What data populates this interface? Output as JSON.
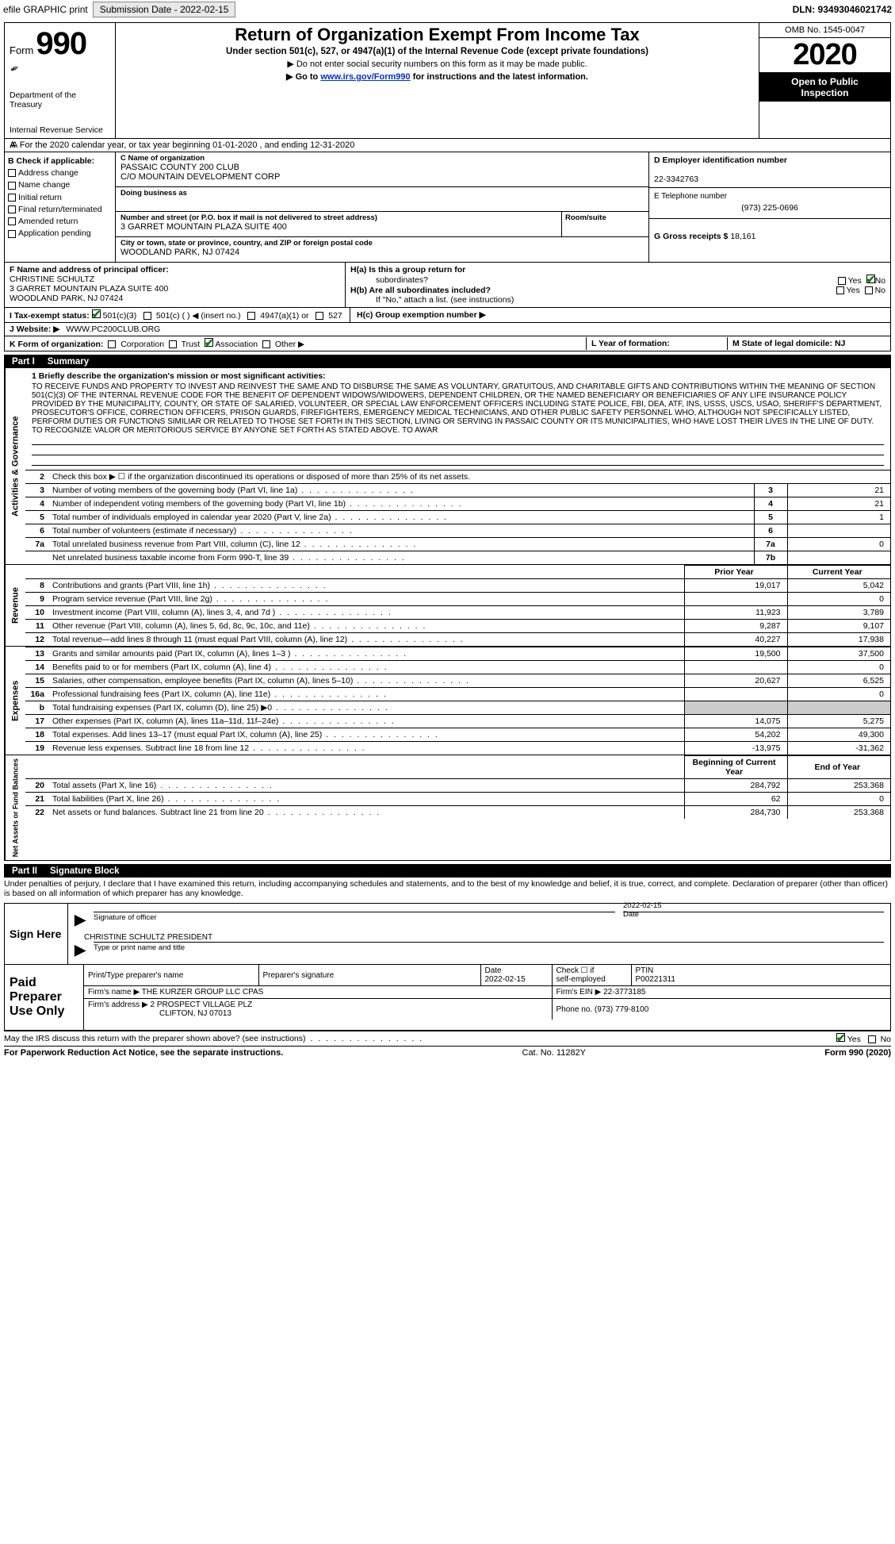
{
  "topbar": {
    "efile": "efile GRAPHIC print",
    "submission_label": "Submission Date - 2022-02-15",
    "dln": "DLN: 93493046021742"
  },
  "header": {
    "form_word": "Form",
    "form_num": "990",
    "dept1": "Department of the Treasury",
    "dept2": "Internal Revenue Service",
    "title": "Return of Organization Exempt From Income Tax",
    "subtitle": "Under section 501(c), 527, or 4947(a)(1) of the Internal Revenue Code (except private foundations)",
    "note": "▶ Do not enter social security numbers on this form as it may be made public.",
    "goto_pre": "▶ Go to ",
    "goto_link": "www.irs.gov/Form990",
    "goto_post": " for instructions and the latest information.",
    "omb": "OMB No. 1545-0047",
    "year": "2020",
    "inspect1": "Open to Public",
    "inspect2": "Inspection"
  },
  "line_a": "A For the 2020 calendar year, or tax year beginning 01-01-2020   , and ending 12-31-2020",
  "col_b": {
    "title": "B Check if applicable:",
    "items": [
      "Address change",
      "Name change",
      "Initial return",
      "Final return/terminated",
      "Amended return",
      "Application pending"
    ]
  },
  "col_c": {
    "name_label": "C Name of organization",
    "name1": "PASSAIC COUNTY 200 CLUB",
    "name2": "C/O MOUNTAIN DEVELOPMENT CORP",
    "dba_label": "Doing business as",
    "addr_label": "Number and street (or P.O. box if mail is not delivered to street address)",
    "addr": "3 GARRET MOUNTAIN PLAZA SUITE 400",
    "room_label": "Room/suite",
    "city_label": "City or town, state or province, country, and ZIP or foreign postal code",
    "city": "WOODLAND PARK, NJ  07424"
  },
  "col_d": {
    "label": "D Employer identification number",
    "val": "22-3342763"
  },
  "col_e": {
    "label": "E Telephone number",
    "val": "(973) 225-0696"
  },
  "col_g": {
    "label": "G Gross receipts $",
    "val": "18,161"
  },
  "col_f": {
    "label": "F  Name and address of principal officer:",
    "name": "CHRISTINE SCHULTZ",
    "addr1": "3 GARRET MOUNTAIN PLAZA SUITE 400",
    "addr2": "WOODLAND PARK, NJ  07424"
  },
  "col_h": {
    "ha": "H(a)  Is this a group return for",
    "ha2": "subordinates?",
    "hb": "H(b)  Are all subordinates included?",
    "hb_note": "If \"No,\" attach a list. (see instructions)",
    "hc": "H(c)  Group exemption number ▶",
    "yes": "Yes",
    "no": "No"
  },
  "row_i": {
    "label": "I  Tax-exempt status:",
    "opts": [
      "501(c)(3)",
      "501(c) (  )  ◀ (insert no.)",
      "4947(a)(1) or",
      "527"
    ]
  },
  "row_j": {
    "label": "J  Website: ▶",
    "val": "WWW.PC200CLUB.ORG"
  },
  "row_k": {
    "label": "K Form of organization:",
    "opts": [
      "Corporation",
      "Trust",
      "Association",
      "Other ▶"
    ],
    "l": "L Year of formation:",
    "m": "M State of legal domicile: NJ"
  },
  "part1": {
    "num": "Part I",
    "title": "Summary"
  },
  "vtabs": {
    "ag": "Activities & Governance",
    "rev": "Revenue",
    "exp": "Expenses",
    "na": "Net Assets or Fund Balances"
  },
  "mission": {
    "label": "1  Briefly describe the organization's mission or most significant activities:",
    "text": "TO RECEIVE FUNDS AND PROPERTY TO INVEST AND REINVEST THE SAME AND TO DISBURSE THE SAME AS VOLUNTARY, GRATUITOUS, AND CHARITABLE GIFTS AND CONTRIBUTIONS WITHIN THE MEANING OF SECTION 501(C)(3) OF THE INTERNAL REVENUE CODE FOR THE BENEFIT OF DEPENDENT WIDOWS/WIDOWERS, DEPENDENT CHILDREN, OR THE NAMED BENEFICIARY OR BENEFICIARIES OF ANY LIFE INSURANCE POLICY PROVIDED BY THE MUNICIPALITY, COUNTY, OR STATE OF SALARIED, VOLUNTEER, OR SPECIAL LAW ENFORCEMENT OFFICERS INCLUDING STATE POLICE, FBI, DEA, ATF, INS, USSS, USCS, USAO, SHERIFF'S DEPARTMENT, PROSECUTOR'S OFFICE, CORRECTION OFFICERS, PRISON GUARDS, FIREFIGHTERS, EMERGENCY MEDICAL TECHNICIANS, AND OTHER PUBLIC SAFETY PERSONNEL WHO, ALTHOUGH NOT SPECIFICALLY LISTED, PERFORM DUTIES OR FUNCTIONS SIMILIAR OR RELATED TO THOSE SET FORTH IN THIS SECTION, LIVING OR SERVING IN PASSAIC COUNTY OR ITS MUNICIPALITIES, WHO HAVE LOST THEIR LIVES IN THE LINE OF DUTY. TO RECOGNIZE VALOR OR MERITORIOUS SERVICE BY ANYONE SET FORTH AS STATED ABOVE. TO AWAR"
  },
  "ag_lines": [
    {
      "n": "2",
      "desc": "Check this box ▶ ☐ if the organization discontinued its operations or disposed of more than 25% of its net assets."
    },
    {
      "n": "3",
      "desc": "Number of voting members of the governing body (Part VI, line 1a)",
      "id": "3",
      "val": "21"
    },
    {
      "n": "4",
      "desc": "Number of independent voting members of the governing body (Part VI, line 1b)",
      "id": "4",
      "val": "21"
    },
    {
      "n": "5",
      "desc": "Total number of individuals employed in calendar year 2020 (Part V, line 2a)",
      "id": "5",
      "val": "1"
    },
    {
      "n": "6",
      "desc": "Total number of volunteers (estimate if necessary)",
      "id": "6",
      "val": ""
    },
    {
      "n": "7a",
      "desc": "Total unrelated business revenue from Part VIII, column (C), line 12",
      "id": "7a",
      "val": "0"
    },
    {
      "n": "",
      "desc": "Net unrelated business taxable income from Form 990-T, line 39",
      "id": "7b",
      "val": ""
    }
  ],
  "rev_header": {
    "prior": "Prior Year",
    "current": "Current Year"
  },
  "rev_lines": [
    {
      "n": "8",
      "desc": "Contributions and grants (Part VIII, line 1h)",
      "p": "19,017",
      "c": "5,042"
    },
    {
      "n": "9",
      "desc": "Program service revenue (Part VIII, line 2g)",
      "p": "",
      "c": "0"
    },
    {
      "n": "10",
      "desc": "Investment income (Part VIII, column (A), lines 3, 4, and 7d )",
      "p": "11,923",
      "c": "3,789"
    },
    {
      "n": "11",
      "desc": "Other revenue (Part VIII, column (A), lines 5, 6d, 8c, 9c, 10c, and 11e)",
      "p": "9,287",
      "c": "9,107"
    },
    {
      "n": "12",
      "desc": "Total revenue—add lines 8 through 11 (must equal Part VIII, column (A), line 12)",
      "p": "40,227",
      "c": "17,938"
    }
  ],
  "exp_lines": [
    {
      "n": "13",
      "desc": "Grants and similar amounts paid (Part IX, column (A), lines 1–3 )",
      "p": "19,500",
      "c": "37,500"
    },
    {
      "n": "14",
      "desc": "Benefits paid to or for members (Part IX, column (A), line 4)",
      "p": "",
      "c": "0"
    },
    {
      "n": "15",
      "desc": "Salaries, other compensation, employee benefits (Part IX, column (A), lines 5–10)",
      "p": "20,627",
      "c": "6,525"
    },
    {
      "n": "16a",
      "desc": "Professional fundraising fees (Part IX, column (A), line 11e)",
      "p": "",
      "c": "0"
    },
    {
      "n": "b",
      "desc": "Total fundraising expenses (Part IX, column (D), line 25) ▶0",
      "p": "GREY",
      "c": "GREY"
    },
    {
      "n": "17",
      "desc": "Other expenses (Part IX, column (A), lines 11a–11d, 11f–24e)",
      "p": "14,075",
      "c": "5,275"
    },
    {
      "n": "18",
      "desc": "Total expenses. Add lines 13–17 (must equal Part IX, column (A), line 25)",
      "p": "54,202",
      "c": "49,300"
    },
    {
      "n": "19",
      "desc": "Revenue less expenses. Subtract line 18 from line 12",
      "p": "-13,975",
      "c": "-31,362"
    }
  ],
  "na_header": {
    "prior": "Beginning of Current Year",
    "current": "End of Year"
  },
  "na_lines": [
    {
      "n": "20",
      "desc": "Total assets (Part X, line 16)",
      "p": "284,792",
      "c": "253,368"
    },
    {
      "n": "21",
      "desc": "Total liabilities (Part X, line 26)",
      "p": "62",
      "c": "0"
    },
    {
      "n": "22",
      "desc": "Net assets or fund balances. Subtract line 21 from line 20",
      "p": "284,730",
      "c": "253,368"
    }
  ],
  "part2": {
    "num": "Part II",
    "title": "Signature Block"
  },
  "sig_decl": "Under penalties of perjury, I declare that I have examined this return, including accompanying schedules and statements, and to the best of my knowledge and belief, it is true, correct, and complete. Declaration of preparer (other than officer) is based on all information of which preparer has any knowledge.",
  "sign": {
    "here": "Sign Here",
    "sig_label": "Signature of officer",
    "date": "2022-02-15",
    "date_label": "Date",
    "name": "CHRISTINE SCHULTZ  PRESIDENT",
    "name_label": "Type or print name and title"
  },
  "prep": {
    "title": "Paid Preparer Use Only",
    "h1": "Print/Type preparer's name",
    "h2": "Preparer's signature",
    "h3_label": "Date",
    "h3": "2022-02-15",
    "h4a": "Check ☐ if",
    "h4b": "self-employed",
    "h5_label": "PTIN",
    "h5": "P00221311",
    "firm_name_label": "Firm's name    ▶",
    "firm_name": "THE KURZER GROUP LLC CPAS",
    "firm_ein_label": "Firm's EIN ▶",
    "firm_ein": "22-3773185",
    "firm_addr_label": "Firm's address ▶",
    "firm_addr1": "2 PROSPECT VILLAGE PLZ",
    "firm_addr2": "CLIFTON, NJ  07013",
    "phone_label": "Phone no.",
    "phone": "(973) 779-8100"
  },
  "footer": {
    "discuss": "May the IRS discuss this return with the preparer shown above? (see instructions)",
    "yes": "Yes",
    "no": "No",
    "paperwork": "For Paperwork Reduction Act Notice, see the separate instructions.",
    "cat": "Cat. No. 11282Y",
    "form": "Form 990 (2020)"
  }
}
